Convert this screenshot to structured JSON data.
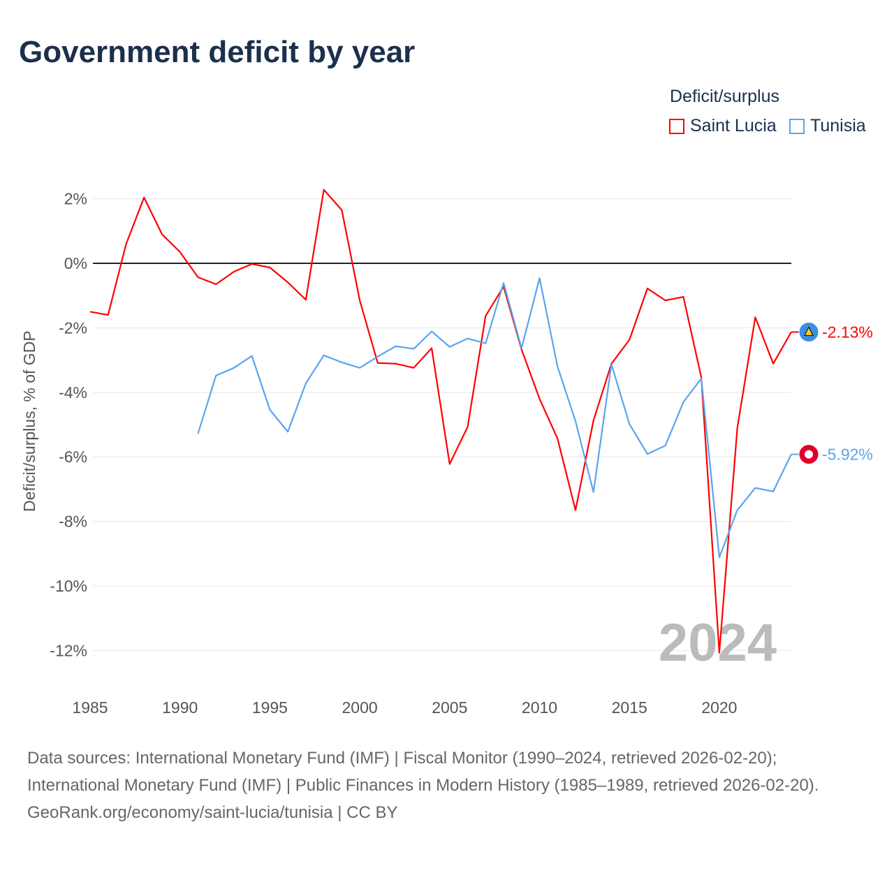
{
  "title": "Government deficit by year",
  "legend": {
    "title": "Deficit/surplus",
    "items": [
      {
        "name": "Saint Lucia",
        "color": "#f00"
      },
      {
        "name": "Tunisia",
        "color": "#5ba4ec"
      }
    ]
  },
  "year_watermark": "2024",
  "end_labels": {
    "saint_lucia": "-2.13%",
    "tunisia": "-5.92%"
  },
  "footer": {
    "sources": "Data sources: International Monetary Fund (IMF) | Fiscal Monitor (1990–2024, retrieved 2026-02-20); International Monetary Fund (IMF) | Public Finances in Modern History (1985–1989, retrieved 2026-02-20).",
    "credit": "GeoRank.org/economy/saint-lucia/tunisia | CC BY"
  },
  "chart_data": {
    "type": "line",
    "title": "Government deficit by year",
    "xlabel": "",
    "ylabel": "Deficit/surplus, % of GDP",
    "xlim": [
      1985,
      2024
    ],
    "ylim": [
      -12,
      2
    ],
    "xticks": [
      1985,
      1990,
      1995,
      2000,
      2005,
      2010,
      2015,
      2020
    ],
    "yticks": [
      2,
      0,
      -2,
      -4,
      -6,
      -8,
      -10,
      -12
    ],
    "ytick_labels": [
      "2%",
      "0%",
      "-2%",
      "-4%",
      "-6%",
      "-8%",
      "-10%",
      "-12%"
    ],
    "series": [
      {
        "name": "Saint Lucia",
        "color": "#f00",
        "start": 1985,
        "values": [
          -1.5,
          -1.6,
          0.59,
          2.04,
          0.9,
          0.35,
          -0.43,
          -0.65,
          -0.26,
          -0.02,
          -0.13,
          -0.59,
          -1.13,
          2.28,
          1.65,
          -1.15,
          -3.09,
          -3.11,
          -3.24,
          -2.63,
          -6.22,
          -5.07,
          -1.63,
          -0.72,
          -2.67,
          -4.2,
          -5.43,
          -7.65,
          -4.87,
          -3.11,
          -2.37,
          -0.78,
          -1.15,
          -1.04,
          -3.54,
          -12.07,
          -5.11,
          -1.67,
          -3.11,
          -2.13
        ]
      },
      {
        "name": "Tunisia",
        "color": "#5ba4ec",
        "start": 1991,
        "values": [
          -5.28,
          -3.48,
          -3.24,
          -2.87,
          -4.54,
          -5.22,
          -3.72,
          -2.85,
          -3.07,
          -3.24,
          -2.89,
          -2.57,
          -2.65,
          -2.11,
          -2.59,
          -2.33,
          -2.48,
          -0.61,
          -2.63,
          -0.46,
          -3.2,
          -4.89,
          -7.09,
          -3.13,
          -4.98,
          -5.91,
          -5.65,
          -4.3,
          -3.57,
          -9.11,
          -7.65,
          -6.96,
          -7.07,
          -5.92
        ]
      }
    ]
  }
}
